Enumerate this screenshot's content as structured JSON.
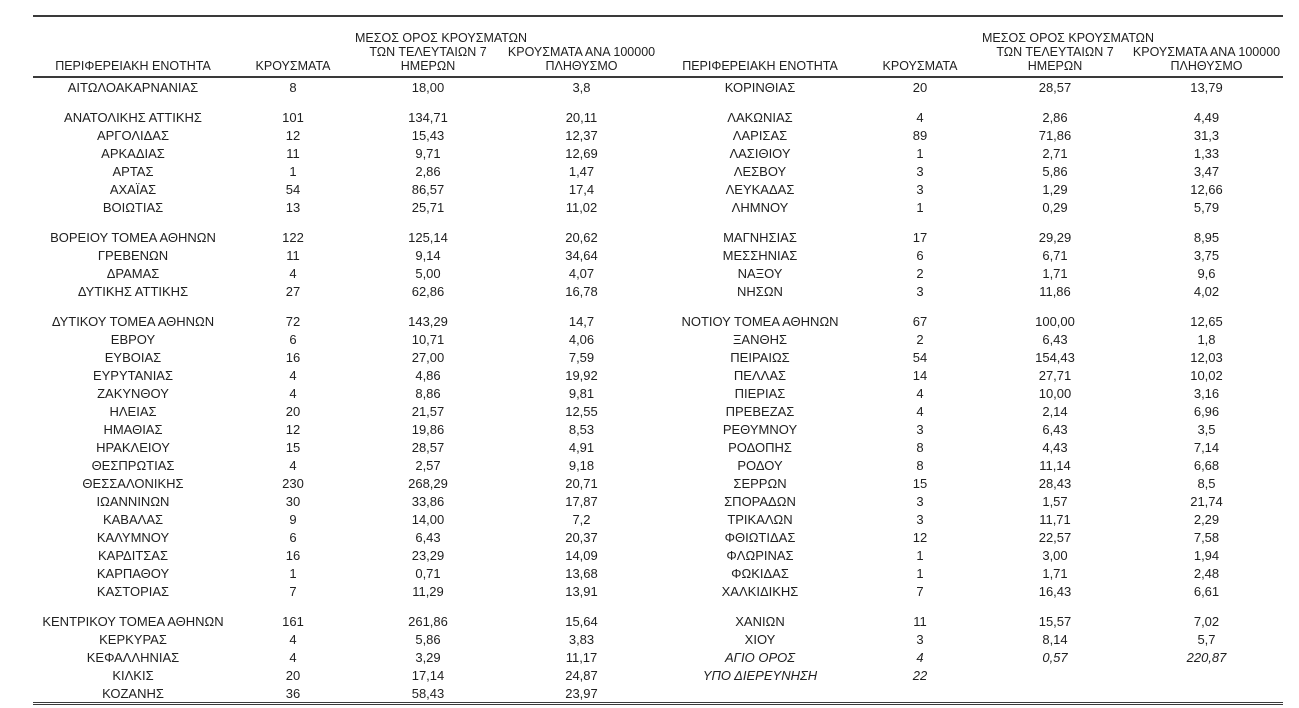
{
  "table": {
    "headers": {
      "region": "ΠΕΡΙΦΕΡΕΙΑΚΗ ΕΝΟΤΗΤΑ",
      "cases": "ΚΡΟΥΣΜΑΤΑ",
      "avg7_line1": "ΜΕΣΟΣ ΟΡΟΣ ΚΡΟΥΣΜΑΤΩΝ",
      "avg7_line2": "ΤΩΝ ΤΕΛΕΥΤΑΙΩΝ 7",
      "avg7_line3": "ΗΜΕΡΩΝ",
      "per100k_line1": "ΚΡΟΥΣΜΑΤΑ ΑΝΑ 100000",
      "per100k_line2": "ΠΛΗΘΥΣΜΟ"
    },
    "italic_rows": [
      "ΑΓΙΟ ΟΡΟΣ",
      "ΥΠΟ ΔΙΕΡΕΥΝΗΣΗ"
    ],
    "left_groups": [
      [
        [
          "ΑΙΤΩΛΟΑΚΑΡΝΑΝΙΑΣ",
          "8",
          "18,00",
          "3,8"
        ]
      ],
      [
        [
          "ΑΝΑΤΟΛΙΚΗΣ ΑΤΤΙΚΗΣ",
          "101",
          "134,71",
          "20,11"
        ],
        [
          "ΑΡΓΟΛΙΔΑΣ",
          "12",
          "15,43",
          "12,37"
        ],
        [
          "ΑΡΚΑΔΙΑΣ",
          "11",
          "9,71",
          "12,69"
        ],
        [
          "ΑΡΤΑΣ",
          "1",
          "2,86",
          "1,47"
        ],
        [
          "ΑΧΑΪΑΣ",
          "54",
          "86,57",
          "17,4"
        ],
        [
          "ΒΟΙΩΤΙΑΣ",
          "13",
          "25,71",
          "11,02"
        ]
      ],
      [
        [
          "ΒΟΡΕΙΟΥ ΤΟΜΕΑ ΑΘΗΝΩΝ",
          "122",
          "125,14",
          "20,62"
        ],
        [
          "ΓΡΕΒΕΝΩΝ",
          "11",
          "9,14",
          "34,64"
        ],
        [
          "ΔΡΑΜΑΣ",
          "4",
          "5,00",
          "4,07"
        ],
        [
          "ΔΥΤΙΚΗΣ ΑΤΤΙΚΗΣ",
          "27",
          "62,86",
          "16,78"
        ]
      ],
      [
        [
          "ΔΥΤΙΚΟΥ ΤΟΜΕΑ ΑΘΗΝΩΝ",
          "72",
          "143,29",
          "14,7"
        ],
        [
          "ΕΒΡΟΥ",
          "6",
          "10,71",
          "4,06"
        ],
        [
          "ΕΥΒΟΙΑΣ",
          "16",
          "27,00",
          "7,59"
        ],
        [
          "ΕΥΡΥΤΑΝΙΑΣ",
          "4",
          "4,86",
          "19,92"
        ],
        [
          "ΖΑΚΥΝΘΟΥ",
          "4",
          "8,86",
          "9,81"
        ],
        [
          "ΗΛΕΙΑΣ",
          "20",
          "21,57",
          "12,55"
        ],
        [
          "ΗΜΑΘΙΑΣ",
          "12",
          "19,86",
          "8,53"
        ],
        [
          "ΗΡΑΚΛΕΙΟΥ",
          "15",
          "28,57",
          "4,91"
        ],
        [
          "ΘΕΣΠΡΩΤΙΑΣ",
          "4",
          "2,57",
          "9,18"
        ],
        [
          "ΘΕΣΣΑΛΟΝΙΚΗΣ",
          "230",
          "268,29",
          "20,71"
        ],
        [
          "ΙΩΑΝΝΙΝΩΝ",
          "30",
          "33,86",
          "17,87"
        ],
        [
          "ΚΑΒΑΛΑΣ",
          "9",
          "14,00",
          "7,2"
        ],
        [
          "ΚΑΛΥΜΝΟΥ",
          "6",
          "6,43",
          "20,37"
        ],
        [
          "ΚΑΡΔΙΤΣΑΣ",
          "16",
          "23,29",
          "14,09"
        ],
        [
          "ΚΑΡΠΑΘΟΥ",
          "1",
          "0,71",
          "13,68"
        ],
        [
          "ΚΑΣΤΟΡΙΑΣ",
          "7",
          "11,29",
          "13,91"
        ]
      ],
      [
        [
          "ΚΕΝΤΡΙΚΟΥ ΤΟΜΕΑ ΑΘΗΝΩΝ",
          "161",
          "261,86",
          "15,64"
        ],
        [
          "ΚΕΡΚΥΡΑΣ",
          "4",
          "5,86",
          "3,83"
        ],
        [
          "ΚΕΦΑΛΛΗΝΙΑΣ",
          "4",
          "3,29",
          "11,17"
        ],
        [
          "ΚΙΛΚΙΣ",
          "20",
          "17,14",
          "24,87"
        ],
        [
          "ΚΟΖΑΝΗΣ",
          "36",
          "58,43",
          "23,97"
        ]
      ]
    ],
    "right_groups": [
      [
        [
          "ΚΟΡΙΝΘΙΑΣ",
          "20",
          "28,57",
          "13,79"
        ]
      ],
      [
        [
          "ΛΑΚΩΝΙΑΣ",
          "4",
          "2,86",
          "4,49"
        ],
        [
          "ΛΑΡΙΣΑΣ",
          "89",
          "71,86",
          "31,3"
        ],
        [
          "ΛΑΣΙΘΙΟΥ",
          "1",
          "2,71",
          "1,33"
        ],
        [
          "ΛΕΣΒΟΥ",
          "3",
          "5,86",
          "3,47"
        ],
        [
          "ΛΕΥΚΑΔΑΣ",
          "3",
          "1,29",
          "12,66"
        ],
        [
          "ΛΗΜΝΟΥ",
          "1",
          "0,29",
          "5,79"
        ]
      ],
      [
        [
          "ΜΑΓΝΗΣΙΑΣ",
          "17",
          "29,29",
          "8,95"
        ],
        [
          "ΜΕΣΣΗΝΙΑΣ",
          "6",
          "6,71",
          "3,75"
        ],
        [
          "ΝΑΞΟΥ",
          "2",
          "1,71",
          "9,6"
        ],
        [
          "ΝΗΣΩΝ",
          "3",
          "11,86",
          "4,02"
        ]
      ],
      [
        [
          "ΝΟΤΙΟΥ ΤΟΜΕΑ ΑΘΗΝΩΝ",
          "67",
          "100,00",
          "12,65"
        ],
        [
          "ΞΑΝΘΗΣ",
          "2",
          "6,43",
          "1,8"
        ],
        [
          "ΠΕΙΡΑΙΩΣ",
          "54",
          "154,43",
          "12,03"
        ],
        [
          "ΠΕΛΛΑΣ",
          "14",
          "27,71",
          "10,02"
        ],
        [
          "ΠΙΕΡΙΑΣ",
          "4",
          "10,00",
          "3,16"
        ],
        [
          "ΠΡΕΒΕΖΑΣ",
          "4",
          "2,14",
          "6,96"
        ],
        [
          "ΡΕΘΥΜΝΟΥ",
          "3",
          "6,43",
          "3,5"
        ],
        [
          "ΡΟΔΟΠΗΣ",
          "8",
          "4,43",
          "7,14"
        ],
        [
          "ΡΟΔΟΥ",
          "8",
          "11,14",
          "6,68"
        ],
        [
          "ΣΕΡΡΩΝ",
          "15",
          "28,43",
          "8,5"
        ],
        [
          "ΣΠΟΡΑΔΩΝ",
          "3",
          "1,57",
          "21,74"
        ],
        [
          "ΤΡΙΚΑΛΩΝ",
          "3",
          "11,71",
          "2,29"
        ],
        [
          "ΦΘΙΩΤΙΔΑΣ",
          "12",
          "22,57",
          "7,58"
        ],
        [
          "ΦΛΩΡΙΝΑΣ",
          "1",
          "3,00",
          "1,94"
        ],
        [
          "ΦΩΚΙΔΑΣ",
          "1",
          "1,71",
          "2,48"
        ],
        [
          "ΧΑΛΚΙΔΙΚΗΣ",
          "7",
          "16,43",
          "6,61"
        ]
      ],
      [
        [
          "ΧΑΝΙΩΝ",
          "11",
          "15,57",
          "7,02"
        ],
        [
          "ΧΙΟΥ",
          "3",
          "8,14",
          "5,7"
        ],
        [
          "ΑΓΙΟ ΟΡΟΣ",
          "4",
          "0,57",
          "220,87"
        ],
        [
          "ΥΠΟ ΔΙΕΡΕΥΝΗΣΗ",
          "22",
          "",
          ""
        ],
        [
          "",
          "",
          "",
          ""
        ]
      ]
    ]
  }
}
